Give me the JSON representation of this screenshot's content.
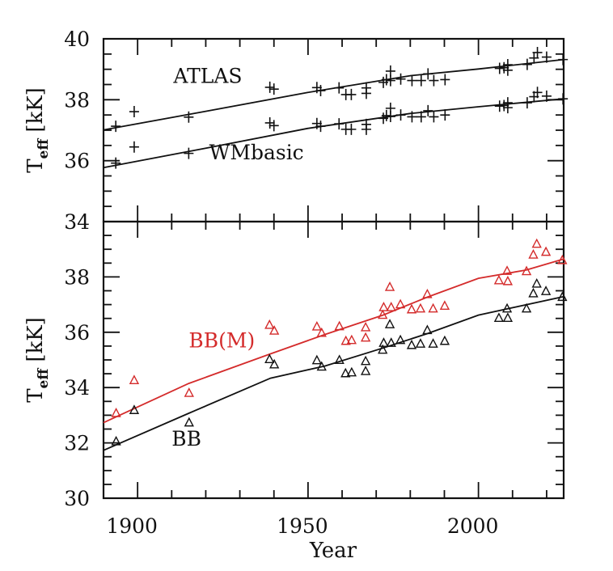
{
  "chart_data": [
    {
      "type": "scatter",
      "panel": "top",
      "xlabel": "",
      "ylabel": "T_eff [kK]",
      "ylabel_main": "T",
      "ylabel_sub": "eff",
      "ylabel_unit": "[kK]",
      "xlim": [
        1890,
        2025
      ],
      "ylim": [
        34,
        40
      ],
      "yticks": [
        34,
        36,
        38,
        40
      ],
      "ytick_labels": [
        "34",
        "36",
        "38",
        "40"
      ],
      "grid": false,
      "series": [
        {
          "name": "ATLAS",
          "marker": "plus",
          "color": "#111111",
          "x": [
            1893.6,
            1899,
            1915,
            1938.8,
            1940,
            1952.6,
            1953.7,
            1959.1,
            1961.1,
            1962.7,
            1967.1,
            1967.1,
            1972.1,
            1973,
            1974.2,
            1974.2,
            1977.2,
            1980.5,
            1983.2,
            1985.2,
            1986.9,
            1990.2,
            2006.2,
            2007.5,
            2008.6,
            2008.6,
            2014.3,
            2016.3,
            2017.3,
            2020,
            2024.8
          ],
          "y": [
            37.13,
            37.61,
            37.43,
            38.41,
            38.35,
            38.4,
            38.3,
            38.39,
            38.17,
            38.17,
            38.39,
            38.21,
            38.57,
            38.66,
            38.94,
            38.63,
            38.68,
            38.63,
            38.63,
            38.85,
            38.63,
            38.66,
            39.03,
            39.05,
            39.15,
            38.97,
            39.16,
            39.37,
            39.55,
            39.4,
            39.32
          ],
          "fit_x": [
            1890,
            1920,
            1950,
            1980,
            2000,
            2025
          ],
          "fit_y": [
            37.01,
            37.62,
            38.24,
            38.79,
            39.01,
            39.32
          ]
        },
        {
          "name": "WMbasic",
          "marker": "plus",
          "color": "#111111",
          "x": [
            1893.6,
            1899,
            1915,
            1938.8,
            1940,
            1952.6,
            1953.7,
            1959.1,
            1961.1,
            1962.7,
            1967.1,
            1967.1,
            1972.1,
            1973,
            1974.2,
            1974.2,
            1977.2,
            1980.5,
            1983.2,
            1985.2,
            1986.9,
            1990.2,
            2006.2,
            2007.5,
            2008.6,
            2008.6,
            2014.3,
            2016.3,
            2017.3,
            2020,
            2024.8
          ],
          "y": [
            35.92,
            36.45,
            36.24,
            37.24,
            37.15,
            37.22,
            37.13,
            37.21,
            37.03,
            37.03,
            37.19,
            37.03,
            37.39,
            37.48,
            37.72,
            37.45,
            37.5,
            37.44,
            37.44,
            37.64,
            37.44,
            37.5,
            37.79,
            37.81,
            37.9,
            37.74,
            37.9,
            38.1,
            38.24,
            38.12,
            38.03
          ],
          "fit_x": [
            1890,
            1920,
            1950,
            1980,
            2000,
            2025
          ],
          "fit_y": [
            35.77,
            36.41,
            37.06,
            37.55,
            37.77,
            38.03
          ]
        }
      ],
      "labels": [
        {
          "text": "ATLAS",
          "x": 1910.5,
          "y": 38.55,
          "color": "#111111"
        },
        {
          "text": "WMbasic",
          "x": 1921,
          "y": 36.05,
          "color": "#111111"
        }
      ]
    },
    {
      "type": "scatter",
      "panel": "bottom",
      "xlabel": "Year",
      "ylabel": "T_eff [kK]",
      "ylabel_main": "T",
      "ylabel_sub": "eff",
      "ylabel_unit": "[kK]",
      "xlim": [
        1890,
        2025
      ],
      "ylim": [
        30,
        40
      ],
      "xticks": [
        1900,
        1950,
        2000
      ],
      "xtick_labels": [
        "1900",
        "1950",
        "2000"
      ],
      "yticks": [
        30,
        32,
        34,
        36,
        38
      ],
      "ytick_labels": [
        "30",
        "32",
        "34",
        "36",
        "38"
      ],
      "grid": false,
      "series": [
        {
          "name": "BB(M)",
          "marker": "triangle",
          "color": "#d42b2b",
          "x": [
            1893.7,
            1899,
            1915.1,
            1938.7,
            1940.1,
            1952.6,
            1954,
            1959.2,
            1961.1,
            1962.8,
            1966.9,
            1966.9,
            1971.9,
            1972.2,
            1974,
            1974.4,
            1977.1,
            1980.4,
            1983,
            1985,
            1986.7,
            1990.1,
            2006,
            2008.4,
            2008.6,
            2014.1,
            2016.1,
            2017.1,
            2019.8,
            2024.6
          ],
          "y": [
            33.07,
            34.26,
            33.8,
            36.26,
            36.05,
            36.2,
            35.97,
            36.21,
            35.68,
            35.71,
            36.17,
            35.8,
            36.62,
            36.9,
            37.63,
            36.9,
            37.0,
            36.82,
            36.85,
            37.37,
            36.85,
            36.95,
            37.87,
            38.21,
            37.84,
            38.2,
            38.8,
            39.19,
            38.9,
            38.6
          ],
          "fit_x": [
            1890,
            1915,
            1939,
            1955,
            1972,
            1985,
            2000,
            2014,
            2025
          ],
          "fit_y": [
            32.73,
            34.15,
            35.22,
            35.92,
            36.62,
            37.27,
            37.95,
            38.25,
            38.65
          ]
        },
        {
          "name": "BB",
          "marker": "triangle",
          "color": "#111111",
          "x": [
            1893.7,
            1899,
            1915.1,
            1938.7,
            1940.1,
            1952.6,
            1954,
            1959.2,
            1961,
            1962.8,
            1966.9,
            1966.9,
            1971.9,
            1972.2,
            1974,
            1974.4,
            1977.1,
            1980.4,
            1983,
            1985,
            1986.7,
            1990.1,
            2006,
            2008.4,
            2008.6,
            2014.1,
            2016.1,
            2017.1,
            2019.8,
            2024.6
          ],
          "y": [
            32.05,
            33.18,
            32.73,
            35.02,
            34.83,
            34.98,
            34.75,
            34.99,
            34.51,
            34.54,
            34.95,
            34.59,
            35.36,
            35.61,
            36.28,
            35.61,
            35.71,
            35.53,
            35.58,
            36.07,
            35.58,
            35.68,
            36.51,
            36.85,
            36.51,
            36.85,
            37.4,
            37.75,
            37.48,
            37.27
          ],
          "fit_x": [
            1890,
            1915,
            1939,
            1955,
            1972,
            1985,
            2000,
            2025
          ],
          "fit_y": [
            31.73,
            33.07,
            34.34,
            34.78,
            35.43,
            35.95,
            36.62,
            37.29
          ]
        }
      ],
      "labels": [
        {
          "text": "BB(M)",
          "x": 1915,
          "y": 35.45,
          "color": "#d42b2b"
        },
        {
          "text": "BB",
          "x": 1910,
          "y": 31.9,
          "color": "#111111"
        }
      ]
    }
  ]
}
